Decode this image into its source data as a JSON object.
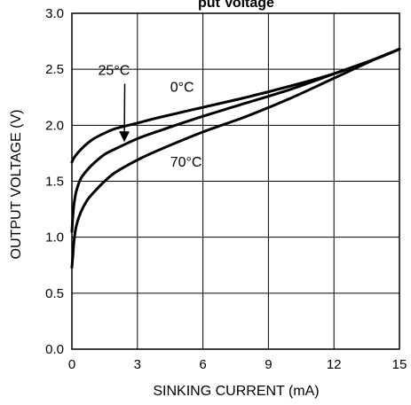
{
  "chart_data": {
    "type": "line",
    "title": "",
    "title_fragment": "put Voltage",
    "xlabel": "SINKING CURRENT (mA)",
    "ylabel": "OUTPUT VOLTAGE (V)",
    "xlim": [
      0,
      15
    ],
    "ylim": [
      0,
      3.0
    ],
    "xticks": [
      0,
      3,
      6,
      9,
      12,
      15
    ],
    "yticks": [
      0.0,
      0.5,
      1.0,
      1.5,
      2.0,
      2.5,
      3.0
    ],
    "xtick_labels": [
      "0",
      "3",
      "6",
      "9",
      "12",
      "15"
    ],
    "ytick_labels": [
      "0.0",
      "0.5",
      "1.0",
      "1.5",
      "2.0",
      "2.5",
      "3.0"
    ],
    "grid": true,
    "legend": "none",
    "series": [
      {
        "name": "0°C",
        "x": [
          0,
          0.1,
          0.3,
          0.6,
          1.0,
          1.5,
          2.0,
          3.0,
          4.0,
          6.0,
          8.0,
          10.0,
          12.0,
          14.0,
          15.0
        ],
        "y": [
          1.67,
          1.71,
          1.76,
          1.82,
          1.88,
          1.93,
          1.97,
          2.02,
          2.07,
          2.16,
          2.25,
          2.35,
          2.46,
          2.6,
          2.68
        ]
      },
      {
        "name": "25°C",
        "x": [
          0,
          0.05,
          0.1,
          0.2,
          0.4,
          0.7,
          1.0,
          1.5,
          2.0,
          3.0,
          4.0,
          6.0,
          8.0,
          10.0,
          12.0,
          14.0,
          15.0
        ],
        "y": [
          1.05,
          1.2,
          1.3,
          1.41,
          1.52,
          1.6,
          1.66,
          1.74,
          1.79,
          1.88,
          1.95,
          2.08,
          2.2,
          2.32,
          2.46,
          2.6,
          2.68
        ]
      },
      {
        "name": "70°C",
        "x": [
          0,
          0.05,
          0.1,
          0.2,
          0.4,
          0.7,
          1.0,
          1.5,
          2.0,
          3.0,
          4.0,
          6.0,
          8.0,
          10.0,
          12.0,
          14.0,
          15.0
        ],
        "y": [
          0.73,
          0.85,
          0.97,
          1.1,
          1.22,
          1.33,
          1.4,
          1.5,
          1.58,
          1.69,
          1.78,
          1.94,
          2.08,
          2.24,
          2.42,
          2.6,
          2.68
        ]
      }
    ],
    "annotations": [
      {
        "text": "25°C",
        "at": [
          1.2,
          2.45
        ],
        "arrow_to": [
          2.4,
          1.86
        ]
      },
      {
        "text": "0°C",
        "at": [
          4.5,
          2.3
        ]
      },
      {
        "text": "70°C",
        "at": [
          4.5,
          1.63
        ]
      }
    ],
    "line_color": "#000000",
    "grid_color": "#000000",
    "background": "#ffffff"
  }
}
